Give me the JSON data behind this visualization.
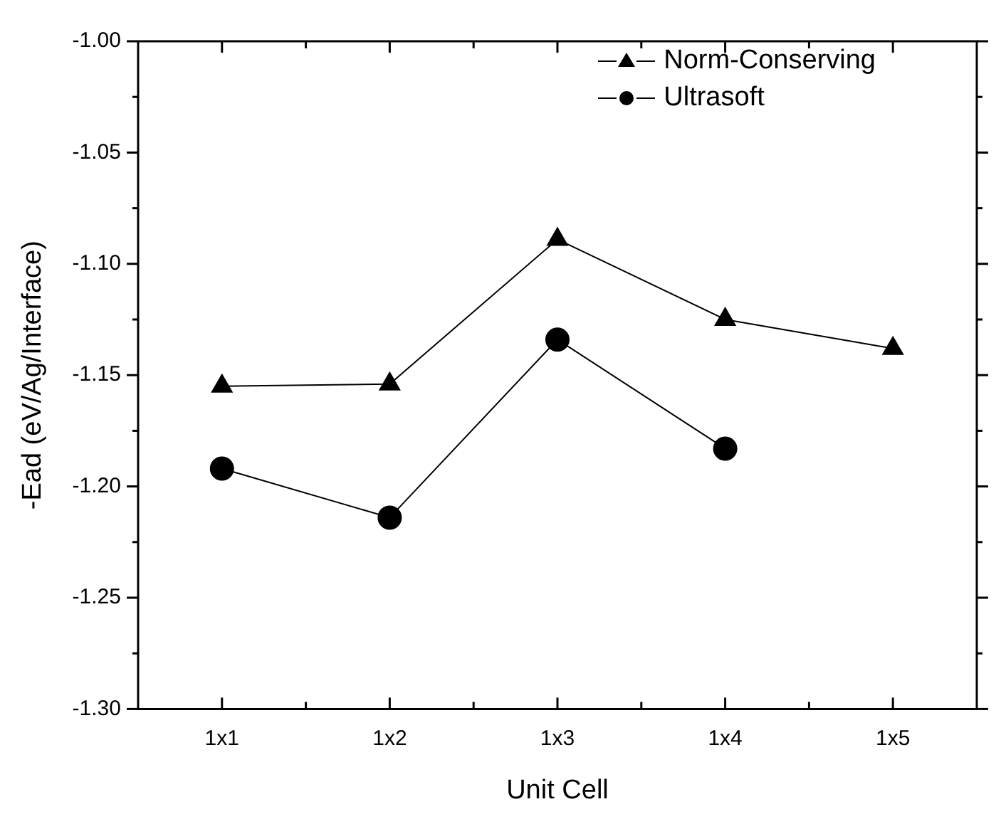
{
  "chart_data": {
    "type": "line",
    "xlabel": "Unit Cell",
    "ylabel": "-Ead (eV/Ag/Interface)",
    "categories": [
      "1x1",
      "1x2",
      "1x3",
      "1x4",
      "1x5"
    ],
    "series": [
      {
        "name": "Norm-Conserving",
        "color": "#000000",
        "marker": "triangle",
        "values": [
          -1.155,
          -1.154,
          -1.089,
          -1.125,
          -1.138
        ]
      },
      {
        "name": "Ultrasoft",
        "color": "#000000",
        "marker": "circle",
        "values": [
          -1.192,
          -1.214,
          -1.134,
          -1.183,
          null
        ]
      }
    ],
    "ylim": [
      -1.3,
      -1.0
    ],
    "yticks": [
      {
        "value": -1.3,
        "label": "-1.30"
      },
      -1.25,
      {
        "value": -1.2,
        "label": "-1.20"
      },
      -1.15,
      {
        "value": -1.1,
        "label": "-1.10"
      },
      -1.05,
      {
        "value": -1.0,
        "label": "-1.00"
      }
    ],
    "grid": false,
    "legend": "top right",
    "line_style": "solid"
  }
}
